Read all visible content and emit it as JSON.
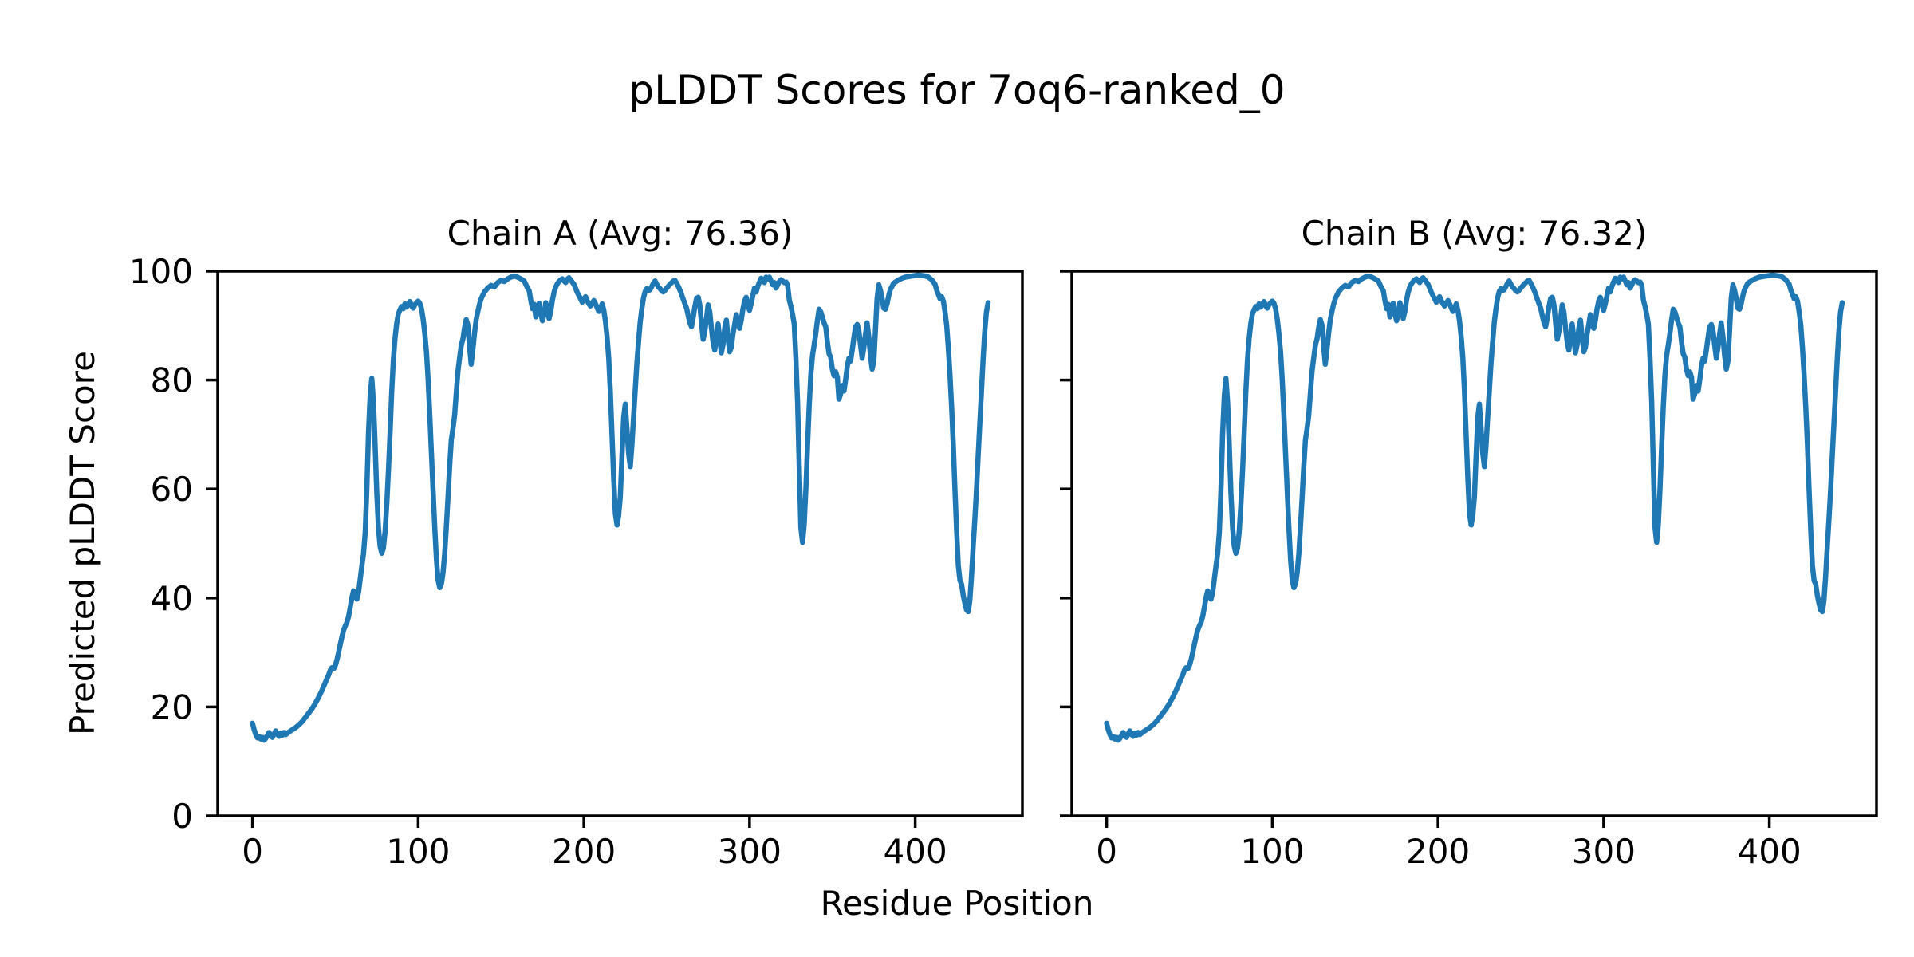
{
  "chart_data": {
    "type": "line",
    "suptitle": "pLDDT Scores for 7oq6-ranked_0",
    "xlabel": "Residue Position",
    "ylabel": "Predicted pLDDT Score",
    "line_color": "#1f77b4",
    "background_color": "#ffffff",
    "spine_color": "#000000",
    "grid": false,
    "legend": "none",
    "xticks": [
      0,
      100,
      200,
      300,
      400
    ],
    "yticks": [
      0,
      20,
      40,
      60,
      80,
      100
    ],
    "xlim": [
      -21.0,
      464.7
    ],
    "ylim": [
      0,
      100
    ],
    "subplots": [
      {
        "id": "chain-a",
        "title": "Chain A (Avg: 76.36)",
        "avg": 76.36,
        "points_ref": "points"
      },
      {
        "id": "chain-b",
        "title": "Chain B (Avg: 76.32)",
        "avg": 76.32,
        "points_ref": "points"
      }
    ],
    "points_note": "Shared curve [residue, pLDDT]; Chain A and Chain B are visually identical.",
    "points": [
      [
        0,
        17.0
      ],
      [
        1,
        15.8
      ],
      [
        2,
        14.9
      ],
      [
        3,
        14.3
      ],
      [
        4,
        14.6
      ],
      [
        5,
        14.1
      ],
      [
        6,
        14.4
      ],
      [
        7,
        13.9
      ],
      [
        8,
        14.2
      ],
      [
        9,
        14.8
      ],
      [
        10,
        15.3
      ],
      [
        11,
        14.7
      ],
      [
        12,
        14.4
      ],
      [
        13,
        15.0
      ],
      [
        14,
        15.6
      ],
      [
        15,
        15.0
      ],
      [
        16,
        14.6
      ],
      [
        17,
        15.2
      ],
      [
        18,
        14.8
      ],
      [
        19,
        15.3
      ],
      [
        20,
        14.9
      ],
      [
        22,
        15.4
      ],
      [
        24,
        15.8
      ],
      [
        26,
        16.2
      ],
      [
        28,
        16.7
      ],
      [
        30,
        17.3
      ],
      [
        32,
        18.1
      ],
      [
        34,
        18.9
      ],
      [
        36,
        19.7
      ],
      [
        38,
        20.7
      ],
      [
        40,
        21.8
      ],
      [
        42,
        23.1
      ],
      [
        44,
        24.5
      ],
      [
        46,
        25.9
      ],
      [
        47,
        26.8
      ],
      [
        48,
        27.2
      ],
      [
        49,
        27.0
      ],
      [
        50,
        27.6
      ],
      [
        51,
        28.7
      ],
      [
        52,
        30.1
      ],
      [
        53,
        31.5
      ],
      [
        54,
        32.9
      ],
      [
        55,
        34.1
      ],
      [
        56,
        34.9
      ],
      [
        57,
        35.5
      ],
      [
        58,
        36.6
      ],
      [
        59,
        38.3
      ],
      [
        60,
        40.1
      ],
      [
        61,
        41.3
      ],
      [
        62,
        40.6
      ],
      [
        63,
        39.8
      ],
      [
        64,
        41.0
      ],
      [
        65,
        43.5
      ],
      [
        66,
        45.8
      ],
      [
        67,
        48.1
      ],
      [
        68,
        52.0
      ],
      [
        69,
        60.0
      ],
      [
        70,
        70.0
      ],
      [
        71,
        77.0
      ],
      [
        72,
        80.3
      ],
      [
        73,
        76.0
      ],
      [
        74,
        68.0
      ],
      [
        75,
        59.5
      ],
      [
        76,
        53.0
      ],
      [
        77,
        49.5
      ],
      [
        78,
        48.2
      ],
      [
        79,
        49.1
      ],
      [
        80,
        52.1
      ],
      [
        81,
        57.0
      ],
      [
        82,
        63.1
      ],
      [
        83,
        70.2
      ],
      [
        84,
        77.6
      ],
      [
        85,
        83.6
      ],
      [
        86,
        87.6
      ],
      [
        87,
        90.4
      ],
      [
        88,
        92.1
      ],
      [
        89,
        92.9
      ],
      [
        90,
        93.5
      ],
      [
        91,
        93.1
      ],
      [
        92,
        94.0
      ],
      [
        93,
        93.4
      ],
      [
        94,
        93.9
      ],
      [
        95,
        94.4
      ],
      [
        96,
        93.6
      ],
      [
        97,
        93.2
      ],
      [
        98,
        93.8
      ],
      [
        99,
        94.2
      ],
      [
        100,
        94.5
      ],
      [
        101,
        94.1
      ],
      [
        102,
        93.1
      ],
      [
        103,
        91.2
      ],
      [
        104,
        88.5
      ],
      [
        105,
        85.1
      ],
      [
        106,
        80.1
      ],
      [
        107,
        73.6
      ],
      [
        108,
        66.5
      ],
      [
        109,
        59.6
      ],
      [
        110,
        53.1
      ],
      [
        111,
        47.2
      ],
      [
        112,
        43.3
      ],
      [
        113,
        41.9
      ],
      [
        114,
        42.6
      ],
      [
        115,
        44.6
      ],
      [
        116,
        48.1
      ],
      [
        117,
        53.1
      ],
      [
        118,
        58.6
      ],
      [
        119,
        64.1
      ],
      [
        120,
        69.0
      ],
      [
        121,
        71.1
      ],
      [
        122,
        73.6
      ],
      [
        123,
        77.6
      ],
      [
        124,
        81.6
      ],
      [
        125,
        84.1
      ],
      [
        126,
        86.4
      ],
      [
        127,
        87.6
      ],
      [
        128,
        89.6
      ],
      [
        129,
        91.1
      ],
      [
        130,
        90.1
      ],
      [
        131,
        86.1
      ],
      [
        132,
        82.9
      ],
      [
        133,
        85.6
      ],
      [
        134,
        88.6
      ],
      [
        135,
        91.1
      ],
      [
        136,
        92.6
      ],
      [
        137,
        93.9
      ],
      [
        138,
        94.9
      ],
      [
        139,
        95.6
      ],
      [
        140,
        96.2
      ],
      [
        142,
        96.9
      ],
      [
        144,
        97.4
      ],
      [
        146,
        97.1
      ],
      [
        148,
        97.9
      ],
      [
        150,
        98.3
      ],
      [
        152,
        98.1
      ],
      [
        154,
        98.6
      ],
      [
        156,
        98.9
      ],
      [
        158,
        99.1
      ],
      [
        160,
        98.9
      ],
      [
        162,
        98.6
      ],
      [
        164,
        98.2
      ],
      [
        166,
        96.9
      ],
      [
        167,
        96.4
      ],
      [
        168,
        94.6
      ],
      [
        169,
        93.1
      ],
      [
        170,
        93.9
      ],
      [
        171,
        91.6
      ],
      [
        172,
        93.1
      ],
      [
        173,
        94.1
      ],
      [
        174,
        92.2
      ],
      [
        175,
        90.9
      ],
      [
        176,
        92.1
      ],
      [
        177,
        94.2
      ],
      [
        178,
        93.1
      ],
      [
        179,
        91.3
      ],
      [
        180,
        92.6
      ],
      [
        181,
        94.6
      ],
      [
        182,
        96.1
      ],
      [
        183,
        97.1
      ],
      [
        184,
        97.7
      ],
      [
        185,
        98.1
      ],
      [
        186,
        98.4
      ],
      [
        187,
        98.6
      ],
      [
        188,
        98.2
      ],
      [
        189,
        97.9
      ],
      [
        190,
        98.5
      ],
      [
        191,
        98.8
      ],
      [
        192,
        98.4
      ],
      [
        193,
        98.0
      ],
      [
        194,
        97.6
      ],
      [
        195,
        96.9
      ],
      [
        196,
        96.1
      ],
      [
        197,
        95.5
      ],
      [
        198,
        94.9
      ],
      [
        199,
        94.3
      ],
      [
        200,
        94.9
      ],
      [
        201,
        95.3
      ],
      [
        202,
        94.6
      ],
      [
        203,
        94.0
      ],
      [
        204,
        93.6
      ],
      [
        205,
        94.1
      ],
      [
        206,
        94.6
      ],
      [
        207,
        94.0
      ],
      [
        208,
        93.3
      ],
      [
        209,
        92.6
      ],
      [
        210,
        93.1
      ],
      [
        211,
        94.0
      ],
      [
        212,
        92.9
      ],
      [
        213,
        90.9
      ],
      [
        214,
        88.0
      ],
      [
        215,
        84.0
      ],
      [
        216,
        78.0
      ],
      [
        217,
        70.0
      ],
      [
        218,
        62.0
      ],
      [
        219,
        55.5
      ],
      [
        220,
        53.4
      ],
      [
        221,
        55.1
      ],
      [
        222,
        58.6
      ],
      [
        223,
        66.1
      ],
      [
        224,
        73.1
      ],
      [
        225,
        75.6
      ],
      [
        226,
        71.1
      ],
      [
        227,
        66.6
      ],
      [
        228,
        64.1
      ],
      [
        229,
        68.1
      ],
      [
        230,
        73.1
      ],
      [
        231,
        78.1
      ],
      [
        232,
        83.1
      ],
      [
        233,
        87.1
      ],
      [
        234,
        90.6
      ],
      [
        235,
        93.1
      ],
      [
        236,
        95.1
      ],
      [
        237,
        96.3
      ],
      [
        238,
        96.8
      ],
      [
        239,
        96.4
      ],
      [
        240,
        96.6
      ],
      [
        241,
        97.2
      ],
      [
        242,
        97.8
      ],
      [
        243,
        98.2
      ],
      [
        244,
        97.6
      ],
      [
        245,
        97.1
      ],
      [
        246,
        96.8
      ],
      [
        247,
        96.4
      ],
      [
        248,
        96.2
      ],
      [
        249,
        96.5
      ],
      [
        250,
        96.9
      ],
      [
        252,
        97.6
      ],
      [
        254,
        98.2
      ],
      [
        255,
        98.3
      ],
      [
        256,
        97.8
      ],
      [
        257,
        97.2
      ],
      [
        258,
        96.5
      ],
      [
        259,
        95.7
      ],
      [
        260,
        94.8
      ],
      [
        261,
        94.0
      ],
      [
        262,
        93.2
      ],
      [
        263,
        91.8
      ],
      [
        264,
        90.5
      ],
      [
        265,
        89.8
      ],
      [
        266,
        91.5
      ],
      [
        267,
        93.5
      ],
      [
        268,
        95.0
      ],
      [
        269,
        95.2
      ],
      [
        270,
        93.8
      ],
      [
        271,
        90.5
      ],
      [
        272,
        87.5
      ],
      [
        273,
        89.0
      ],
      [
        274,
        91.2
      ],
      [
        275,
        93.8
      ],
      [
        276,
        92.5
      ],
      [
        277,
        89.5
      ],
      [
        278,
        87.0
      ],
      [
        279,
        85.5
      ],
      [
        280,
        88.0
      ],
      [
        281,
        90.3
      ],
      [
        282,
        87.5
      ],
      [
        283,
        85.0
      ],
      [
        284,
        86.5
      ],
      [
        285,
        89.5
      ],
      [
        286,
        91.0
      ],
      [
        287,
        88.0
      ],
      [
        288,
        85.2
      ],
      [
        289,
        86.0
      ],
      [
        290,
        88.5
      ],
      [
        291,
        90.2
      ],
      [
        292,
        92.0
      ],
      [
        293,
        91.0
      ],
      [
        294,
        89.5
      ],
      [
        295,
        91.0
      ],
      [
        296,
        93.0
      ],
      [
        297,
        94.5
      ],
      [
        298,
        95.2
      ],
      [
        299,
        94.0
      ],
      [
        300,
        92.8
      ],
      [
        301,
        94.0
      ],
      [
        302,
        95.5
      ],
      [
        303,
        96.9
      ],
      [
        304,
        96.2
      ],
      [
        305,
        97.2
      ],
      [
        306,
        98.0
      ],
      [
        307,
        98.7
      ],
      [
        308,
        98.3
      ],
      [
        309,
        97.9
      ],
      [
        310,
        98.9
      ],
      [
        311,
        98.6
      ],
      [
        312,
        98.9
      ],
      [
        313,
        98.2
      ],
      [
        314,
        97.5
      ],
      [
        315,
        97.9
      ],
      [
        316,
        96.9
      ],
      [
        317,
        97.5
      ],
      [
        318,
        98.1
      ],
      [
        319,
        98.4
      ],
      [
        320,
        98.2
      ],
      [
        321,
        97.9
      ],
      [
        322,
        98.0
      ],
      [
        323,
        97.4
      ],
      [
        324,
        94.7
      ],
      [
        325,
        93.5
      ],
      [
        326,
        92.0
      ],
      [
        327,
        90.3
      ],
      [
        328,
        84.0
      ],
      [
        329,
        76.0
      ],
      [
        330,
        64.0
      ],
      [
        331,
        53.0
      ],
      [
        332,
        50.2
      ],
      [
        333,
        53.5
      ],
      [
        334,
        60.0
      ],
      [
        335,
        68.0
      ],
      [
        336,
        75.0
      ],
      [
        337,
        81.0
      ],
      [
        338,
        84.5
      ],
      [
        339,
        86.5
      ],
      [
        340,
        88.5
      ],
      [
        341,
        91.0
      ],
      [
        342,
        93.0
      ],
      [
        343,
        92.5
      ],
      [
        344,
        91.5
      ],
      [
        345,
        90.5
      ],
      [
        346,
        89.8
      ],
      [
        347,
        87.0
      ],
      [
        348,
        84.8
      ],
      [
        349,
        84.2
      ],
      [
        350,
        82.0
      ],
      [
        351,
        80.8
      ],
      [
        352,
        81.5
      ],
      [
        353,
        80.5
      ],
      [
        354,
        76.5
      ],
      [
        355,
        77.5
      ],
      [
        356,
        79.0
      ],
      [
        357,
        78.0
      ],
      [
        358,
        80.0
      ],
      [
        359,
        82.5
      ],
      [
        360,
        84.0
      ],
      [
        361,
        83.5
      ],
      [
        362,
        85.5
      ],
      [
        363,
        87.8
      ],
      [
        364,
        89.8
      ],
      [
        365,
        90.2
      ],
      [
        366,
        89.0
      ],
      [
        367,
        86.5
      ],
      [
        368,
        84.0
      ],
      [
        369,
        86.0
      ],
      [
        370,
        88.5
      ],
      [
        371,
        90.5
      ],
      [
        372,
        88.0
      ],
      [
        373,
        84.5
      ],
      [
        374,
        82.0
      ],
      [
        375,
        83.5
      ],
      [
        376,
        89.0
      ],
      [
        377,
        95.0
      ],
      [
        378,
        97.5
      ],
      [
        379,
        96.5
      ],
      [
        380,
        95.0
      ],
      [
        381,
        93.2
      ],
      [
        382,
        93.0
      ],
      [
        383,
        94.0
      ],
      [
        384,
        95.5
      ],
      [
        385,
        96.6
      ],
      [
        386,
        97.2
      ],
      [
        387,
        97.8
      ],
      [
        388,
        98.0
      ],
      [
        390,
        98.4
      ],
      [
        392,
        98.7
      ],
      [
        394,
        98.9
      ],
      [
        396,
        99.0
      ],
      [
        398,
        99.1
      ],
      [
        400,
        99.2
      ],
      [
        402,
        99.3
      ],
      [
        404,
        99.2
      ],
      [
        406,
        99.1
      ],
      [
        408,
        98.9
      ],
      [
        410,
        98.4
      ],
      [
        411,
        98.0
      ],
      [
        412,
        97.6
      ],
      [
        413,
        96.5
      ],
      [
        414,
        95.7
      ],
      [
        415,
        94.9
      ],
      [
        416,
        95.3
      ],
      [
        417,
        94.5
      ],
      [
        418,
        92.5
      ],
      [
        419,
        90.0
      ],
      [
        420,
        86.0
      ],
      [
        421,
        81.0
      ],
      [
        422,
        75.0
      ],
      [
        423,
        68.0
      ],
      [
        424,
        60.0
      ],
      [
        425,
        52.5
      ],
      [
        426,
        46.0
      ],
      [
        427,
        43.2
      ],
      [
        428,
        42.5
      ],
      [
        429,
        40.5
      ],
      [
        430,
        39.0
      ],
      [
        431,
        37.8
      ],
      [
        432,
        37.5
      ],
      [
        433,
        39.5
      ],
      [
        434,
        44.0
      ],
      [
        435,
        49.5
      ],
      [
        436,
        54.5
      ],
      [
        437,
        60.0
      ],
      [
        438,
        66.0
      ],
      [
        439,
        72.0
      ],
      [
        440,
        78.0
      ],
      [
        441,
        84.0
      ],
      [
        442,
        89.0
      ],
      [
        443,
        92.5
      ],
      [
        444,
        94.2
      ]
    ]
  }
}
